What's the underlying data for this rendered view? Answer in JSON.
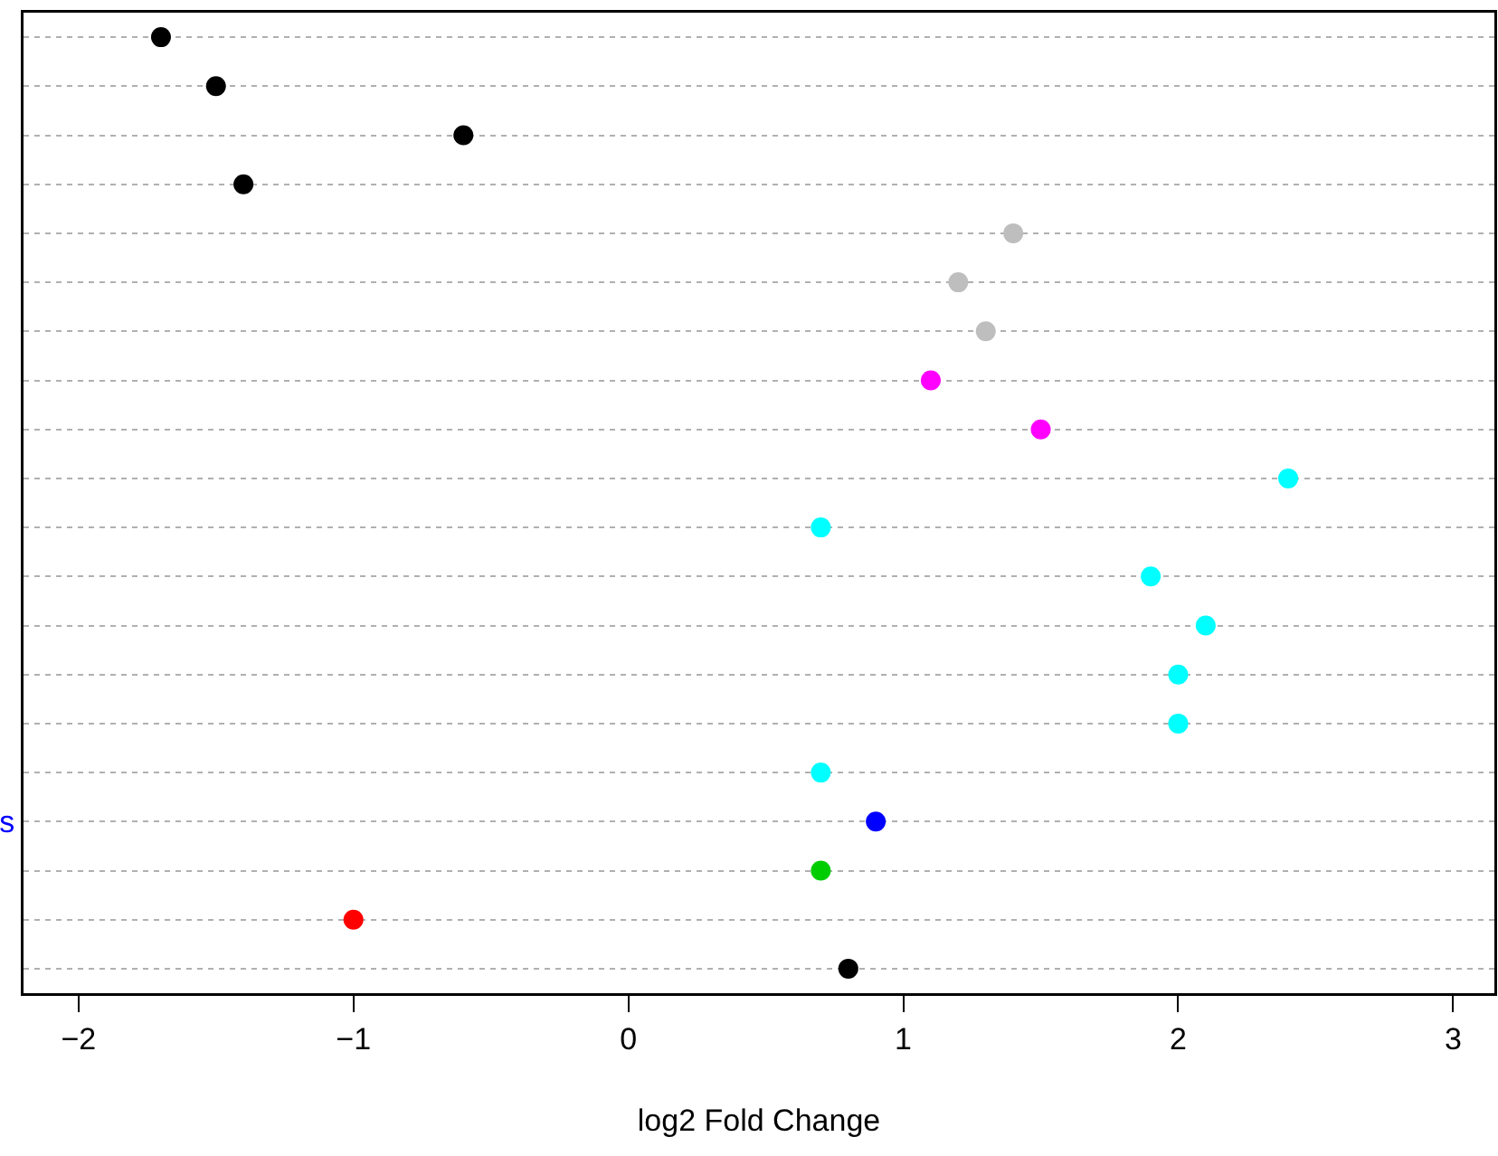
{
  "chart_data": {
    "type": "scatter",
    "xlabel": "log2 Fold Change",
    "categories": [
      null,
      null,
      null,
      null,
      null,
      null,
      null,
      null,
      null,
      null,
      null,
      null,
      null,
      null,
      null,
      null,
      "s",
      null,
      null,
      null
    ],
    "values": [
      -1.7,
      -1.5,
      -0.6,
      -1.4,
      1.4,
      1.2,
      1.3,
      1.1,
      1.5,
      2.4,
      0.7,
      1.9,
      2.1,
      2.0,
      2.0,
      0.7,
      0.9,
      0.7,
      -1.0,
      0.8
    ],
    "colors": [
      "#000000",
      "#000000",
      "#000000",
      "#000000",
      "#bebebe",
      "#bebebe",
      "#bebebe",
      "#ff00ff",
      "#ff00ff",
      "#00ffff",
      "#00ffff",
      "#00ffff",
      "#00ffff",
      "#00ffff",
      "#00ffff",
      "#00ffff",
      "#0000ff",
      "#00cd00",
      "#ff0000",
      "#000000"
    ],
    "orientation": "horizontal",
    "xlim": [
      -2.2,
      3.15
    ],
    "xticks": [
      -2,
      -1,
      0,
      1,
      2,
      3
    ],
    "grid": "y",
    "marker": "circle"
  }
}
